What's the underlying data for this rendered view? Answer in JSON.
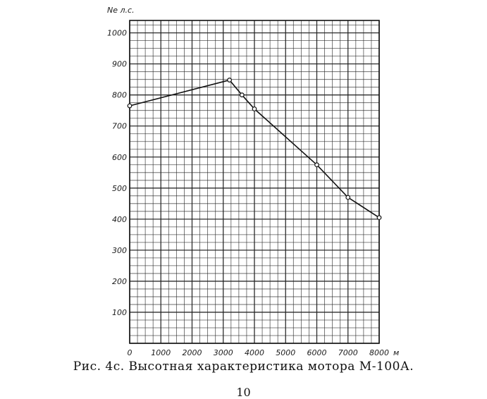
{
  "chart_data": {
    "type": "line",
    "ylabel": "Ne л.с.",
    "x_unit": "м",
    "x": [
      0,
      3200,
      3600,
      4000,
      6000,
      7000,
      8000
    ],
    "y": [
      765,
      848,
      800,
      755,
      575,
      470,
      405
    ],
    "xlim": [
      0,
      8000
    ],
    "ylim": [
      0,
      1000
    ],
    "x_ticks": [
      0,
      1000,
      2000,
      3000,
      4000,
      5000,
      6000,
      7000,
      8000
    ],
    "y_ticks": [
      100,
      200,
      300,
      400,
      500,
      600,
      700,
      800,
      900,
      1000
    ],
    "grid": true,
    "line_color": "#111111",
    "grid_color": "#222222"
  },
  "caption": "Рис. 4с. Высотная характеристика мотора М-100А.",
  "page_number": "10"
}
